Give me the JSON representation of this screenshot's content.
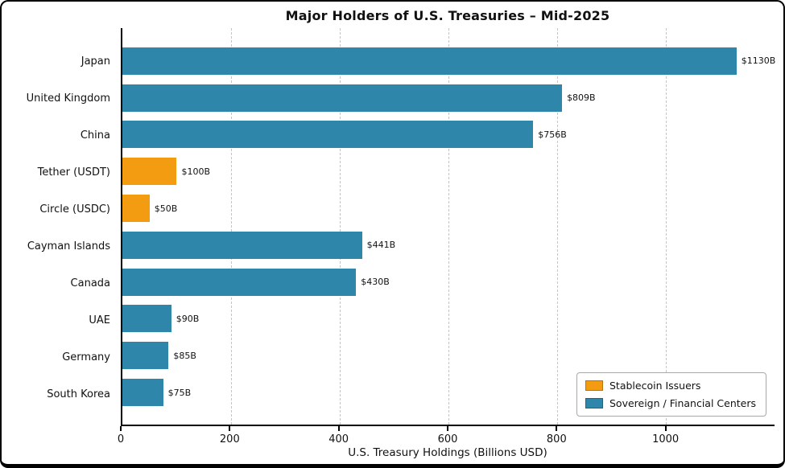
{
  "chart_data": {
    "type": "bar",
    "orientation": "horizontal",
    "title": "Major Holders of U.S. Treasuries – Mid-2025",
    "xlabel": "U.S. Treasury Holdings (Billions USD)",
    "ylabel": "",
    "xlim": [
      0,
      1200
    ],
    "xticks": [
      0,
      200,
      400,
      600,
      800,
      1000
    ],
    "grid": "vertical-dashed",
    "legend_position": "lower right",
    "categories": [
      "Japan",
      "United Kingdom",
      "China",
      "Tether (USDT)",
      "Circle (USDC)",
      "Cayman Islands",
      "Canada",
      "UAE",
      "Germany",
      "South Korea"
    ],
    "values": [
      1130,
      809,
      756,
      100,
      50,
      441,
      430,
      90,
      85,
      75
    ],
    "bar_labels": [
      "$1130B",
      "$809B",
      "$756B",
      "$100B",
      "$50B",
      "$441B",
      "$430B",
      "$90B",
      "$85B",
      "$75B"
    ],
    "groups": [
      "sovereign",
      "sovereign",
      "sovereign",
      "stablecoin",
      "stablecoin",
      "sovereign",
      "sovereign",
      "sovereign",
      "sovereign",
      "sovereign"
    ],
    "colors": {
      "stablecoin": "#F39C12",
      "sovereign": "#2E86AB"
    },
    "legend": [
      {
        "key": "stablecoin",
        "label": "Stablecoin Issuers",
        "color": "#F39C12"
      },
      {
        "key": "sovereign",
        "label": "Sovereign / Financial Centers",
        "color": "#2E86AB"
      }
    ]
  }
}
